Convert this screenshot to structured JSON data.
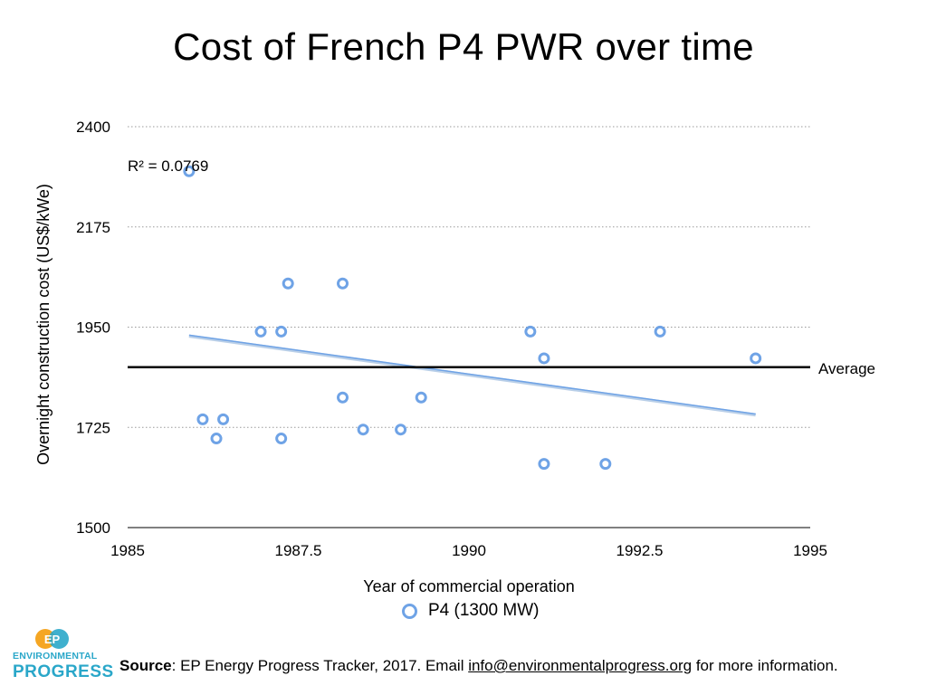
{
  "title": "Cost of French P4 PWR over time",
  "legend": {
    "label": "P4 (1300 MW)",
    "marker": "hollow-circle"
  },
  "source": {
    "label": "Source",
    "text_before": ": EP Energy Progress Tracker, 2017. Email ",
    "email": "info@environmentalprogress.org",
    "text_after": " for more information."
  },
  "logo": {
    "line1": "ENVIRONMENTAL",
    "line2": "PROGRESS",
    "mark_text": "EP",
    "icon": "ep-logo-icon"
  },
  "colors": {
    "points": "#6fa3e6",
    "trend": "#8fb4e3",
    "average": "#000000",
    "grid": "#9a9a9a",
    "logo_orange": "#f5a623",
    "logo_blue": "#2aa7c9"
  },
  "chart_data": {
    "type": "scatter",
    "title": "Cost of French P4 PWR over time",
    "xlabel": "Year of commercial operation",
    "ylabel": "Overnight construction cost (US$/kWe)",
    "xlim": [
      1985,
      1995
    ],
    "ylim": [
      1500,
      2400
    ],
    "xticks": [
      1985,
      1987.5,
      1990,
      1992.5,
      1995
    ],
    "xtick_labels": [
      "1985",
      "1987.5",
      "1990",
      "1992.5",
      "1995"
    ],
    "yticks": [
      1500,
      1725,
      1950,
      2175,
      2400
    ],
    "ytick_labels": [
      "1500",
      "1725",
      "1950",
      "2175",
      "2400"
    ],
    "grid": "horizontal dotted",
    "legend_position": "bottom",
    "series": [
      {
        "name": "P4 (1300 MW)",
        "marker": "hollow circle",
        "points": [
          {
            "x": 1985.9,
            "y": 2300
          },
          {
            "x": 1986.1,
            "y": 1743
          },
          {
            "x": 1986.3,
            "y": 1700
          },
          {
            "x": 1986.4,
            "y": 1743
          },
          {
            "x": 1986.95,
            "y": 1940
          },
          {
            "x": 1987.25,
            "y": 1940
          },
          {
            "x": 1987.25,
            "y": 1700
          },
          {
            "x": 1987.35,
            "y": 2048
          },
          {
            "x": 1988.15,
            "y": 2048
          },
          {
            "x": 1988.15,
            "y": 1792
          },
          {
            "x": 1988.45,
            "y": 1720
          },
          {
            "x": 1989.0,
            "y": 1720
          },
          {
            "x": 1989.3,
            "y": 1792
          },
          {
            "x": 1990.9,
            "y": 1940
          },
          {
            "x": 1991.1,
            "y": 1880
          },
          {
            "x": 1991.1,
            "y": 1643
          },
          {
            "x": 1992.0,
            "y": 1643
          },
          {
            "x": 1992.8,
            "y": 1940
          },
          {
            "x": 1994.2,
            "y": 1880
          }
        ]
      }
    ],
    "trendline": {
      "type": "linear",
      "x": [
        1985.9,
        1994.2
      ],
      "y": [
        1930,
        1753
      ],
      "r2_label": "R² = 0.0769"
    },
    "average_line": {
      "y": 1860,
      "label": "Average"
    }
  }
}
